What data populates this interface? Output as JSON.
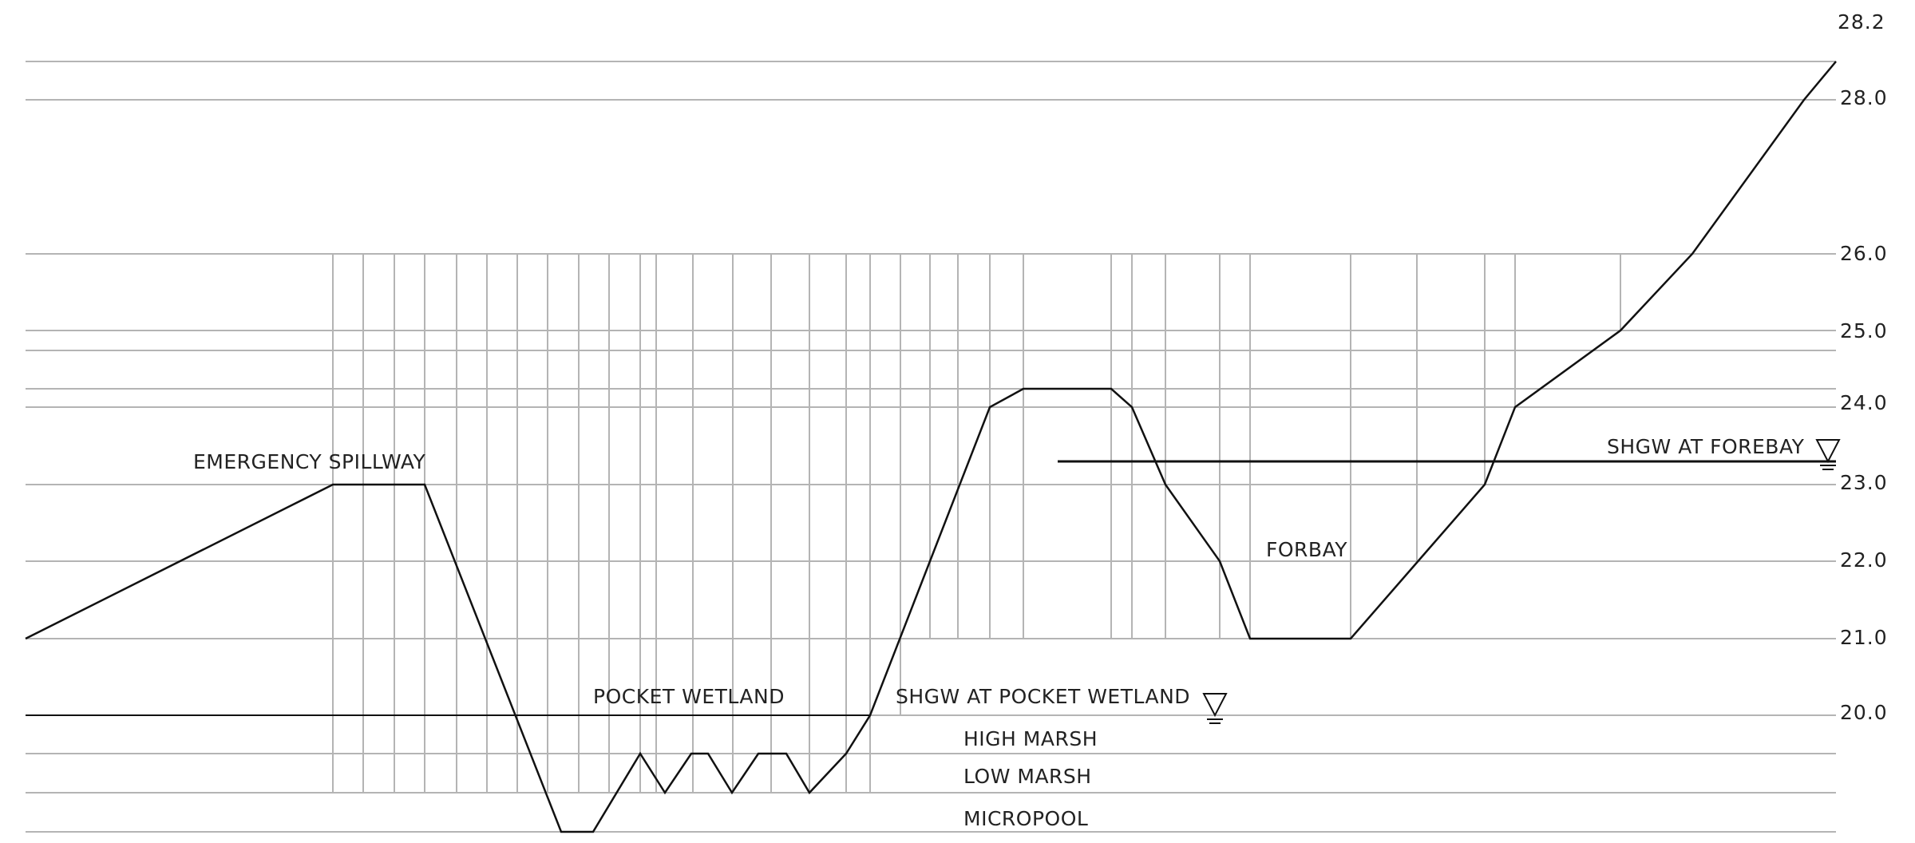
{
  "elevations": {
    "top": "28.2",
    "e28": "28.0",
    "e26": "26.0",
    "e25": "25.0",
    "e24": "24.0",
    "e23": "23.0",
    "e22": "22.0",
    "e21": "21.0",
    "e20": "20.0"
  },
  "labels": {
    "emergency_spillway": "EMERGENCY SPILLWAY",
    "pocket_wetland": "POCKET WETLAND",
    "shgw_pocket_wetland": "SHGW AT POCKET WETLAND",
    "high_marsh": "HIGH MARSH",
    "low_marsh": "LOW MARSH",
    "micropool": "MICROPOOL",
    "forbay": "FORBAY",
    "shgw_forebay": "SHGW AT FOREBAY"
  },
  "colors": {
    "grid": "#b4b4b4",
    "profile": "#111111",
    "text": "#222222"
  }
}
